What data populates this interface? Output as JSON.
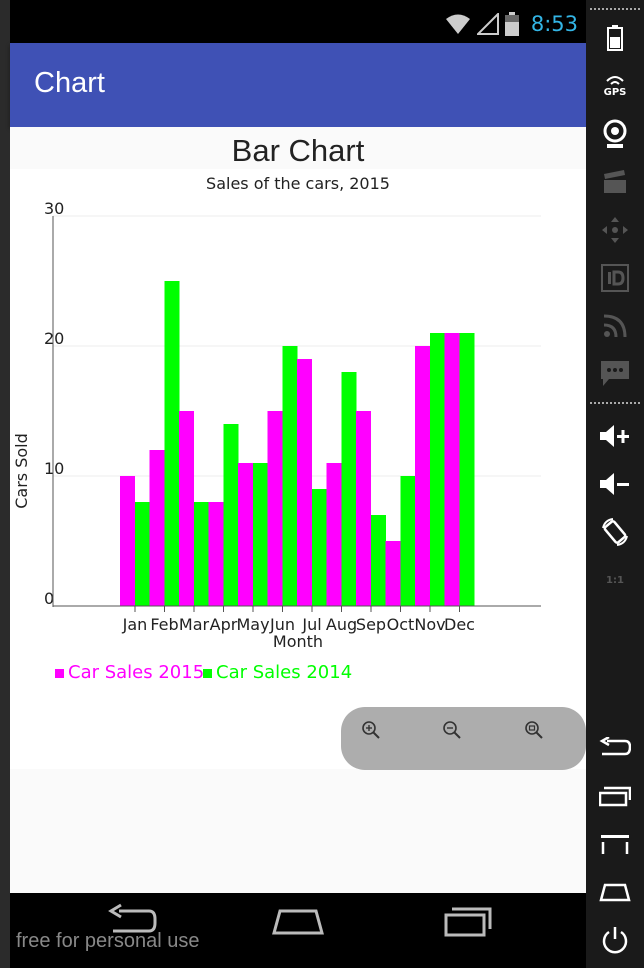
{
  "status_bar": {
    "time": "8:53"
  },
  "app_bar": {
    "title": "Chart"
  },
  "watermark": "free for personal use",
  "sidebar": {
    "gps_label": "GPS",
    "scale_label": "1:1"
  },
  "colors": {
    "series_2015": "#ff00ff",
    "series_2014": "#00ff00",
    "appbar": "#3f51b5"
  },
  "chart_data": {
    "type": "bar",
    "title": "Bar Chart",
    "subtitle": "Sales of the cars, 2015",
    "xlabel": "Month",
    "ylabel": "Cars Sold",
    "ylim": [
      0,
      30
    ],
    "yticks": [
      "0",
      "10",
      "20",
      "30"
    ],
    "categories": [
      "Jan",
      "Feb",
      "Mar",
      "Apr",
      "May",
      "Jun",
      "Jul",
      "Aug",
      "Sep",
      "Oct",
      "Nov",
      "Dec"
    ],
    "series": [
      {
        "name": "Car Sales 2015",
        "color": "#ff00ff",
        "values": [
          10,
          12,
          15,
          8,
          11,
          15,
          19,
          11,
          15,
          5,
          20,
          21
        ]
      },
      {
        "name": "Car Sales 2014",
        "color": "#00ff00",
        "values": [
          8,
          25,
          8,
          14,
          11,
          20,
          9,
          18,
          7,
          10,
          21,
          21
        ]
      }
    ],
    "grid": true,
    "legend": "bottom-left"
  }
}
